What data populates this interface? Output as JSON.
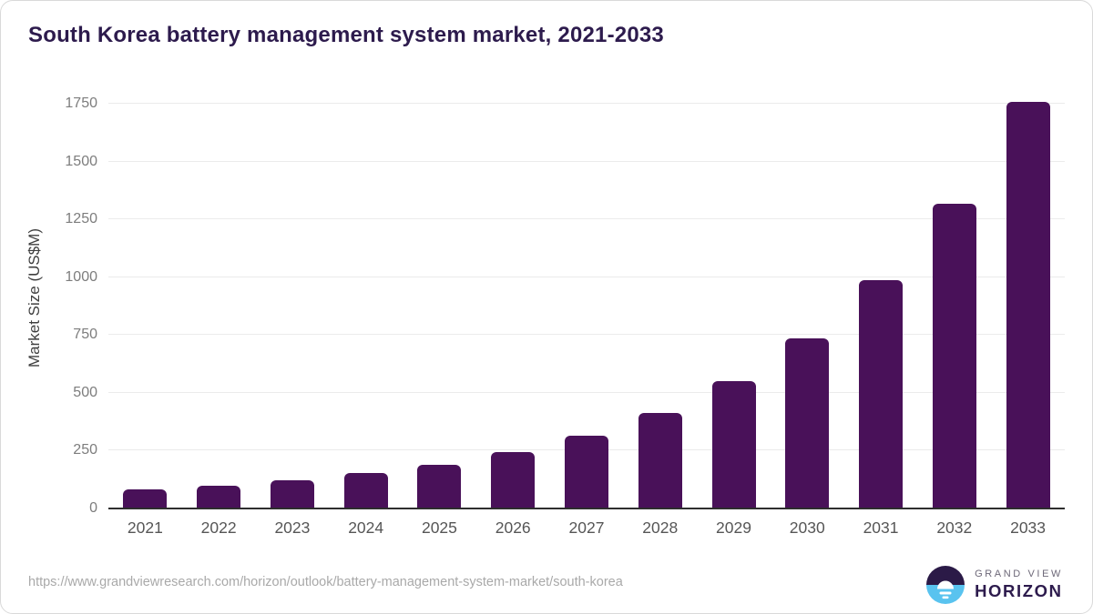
{
  "chart_data": {
    "type": "bar",
    "title": "South Korea battery management system market, 2021-2033",
    "categories": [
      "2021",
      "2022",
      "2023",
      "2024",
      "2025",
      "2026",
      "2027",
      "2028",
      "2029",
      "2030",
      "2031",
      "2032",
      "2033"
    ],
    "values": [
      83,
      100,
      123,
      152,
      190,
      244,
      314,
      412,
      550,
      737,
      986,
      1316,
      1758
    ],
    "xlabel": "",
    "ylabel": "Market Size (US$M)",
    "ylim": [
      0,
      1750
    ],
    "yticks": [
      0,
      250,
      500,
      750,
      1000,
      1250,
      1500,
      1750
    ],
    "grid": true,
    "legend_position": "none",
    "bar_color": "#491159",
    "grid_color": "#ebebeb",
    "axis_color": "#2e2e2e"
  },
  "footer": {
    "source_url": "https://www.grandviewresearch.com/horizon/outlook/battery-management-system-market/south-korea",
    "logo": {
      "line1": "GRAND VIEW",
      "line2": "HORIZON",
      "icon": "sunrise-horizon-icon",
      "icon_purple": "#2b1a47",
      "icon_blue": "#59c3ef"
    }
  }
}
